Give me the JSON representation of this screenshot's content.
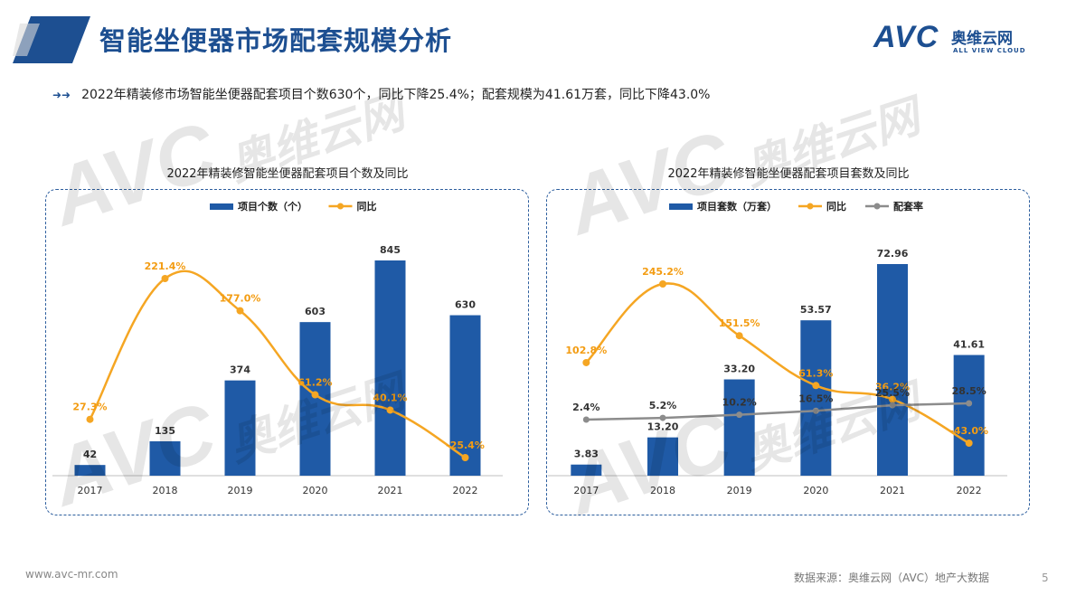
{
  "header": {
    "title": "智能坐便器市场配套规模分析",
    "logo_mark": "AVC",
    "logo_cn": "奥维云网",
    "logo_sub": "ALL VIEW CLOUD"
  },
  "summary": "2022年精装修市场智能坐便器配套项目个数630个，同比下降25.4%；配套规模为41.61万套，同比下降43.0%",
  "footer": {
    "website": "www.avc-mr.com",
    "source": "数据来源：奥维云网（AVC）地产大数据",
    "page_number": "5"
  },
  "colors": {
    "brand": "#1d4f91",
    "bar": "#1f5aa6",
    "line_yoy": "#f5a623",
    "line_rate": "#8c8c8c",
    "label_orange": "#f39c12"
  },
  "chart_data": [
    {
      "type": "bar",
      "title": "2022年精装修智能坐便器配套项目个数及同比",
      "categories": [
        "2017",
        "2018",
        "2019",
        "2020",
        "2021",
        "2022"
      ],
      "series": [
        {
          "name": "项目个数（个）",
          "kind": "bar",
          "values": [
            42,
            135,
            374,
            603,
            845,
            630
          ],
          "labels": [
            "42",
            "135",
            "374",
            "603",
            "845",
            "630"
          ]
        },
        {
          "name": "同比",
          "kind": "line",
          "values": [
            27.3,
            221.4,
            177.0,
            61.2,
            40.1,
            -25.4
          ],
          "labels": [
            "27.3%",
            "221.4%",
            "177.0%",
            "61.2%",
            "40.1%",
            "-25.4%"
          ]
        }
      ],
      "legend": "top-center",
      "grid": false
    },
    {
      "type": "bar",
      "title": "2022年精装修智能坐便器配套项目套数及同比",
      "categories": [
        "2017",
        "2018",
        "2019",
        "2020",
        "2021",
        "2022"
      ],
      "series": [
        {
          "name": "项目套数（万套）",
          "kind": "bar",
          "values": [
            3.83,
            13.2,
            33.2,
            53.57,
            72.96,
            41.61
          ],
          "labels": [
            "3.83",
            "13.20",
            "33.20",
            "53.57",
            "72.96",
            "41.61"
          ]
        },
        {
          "name": "同比",
          "kind": "line",
          "values": [
            102.8,
            245.2,
            151.5,
            61.3,
            36.2,
            -43.0
          ],
          "labels": [
            "102.8%",
            "245.2%",
            "151.5%",
            "61.3%",
            "36.2%",
            "-43.0%"
          ]
        },
        {
          "name": "配套率",
          "kind": "line",
          "values": [
            2.4,
            5.2,
            10.2,
            16.5,
            25.5,
            28.5
          ],
          "labels": [
            "2.4%",
            "5.2%",
            "10.2%",
            "16.5%",
            "25.5%",
            "28.5%"
          ]
        }
      ],
      "legend": "top-center",
      "grid": false
    }
  ]
}
